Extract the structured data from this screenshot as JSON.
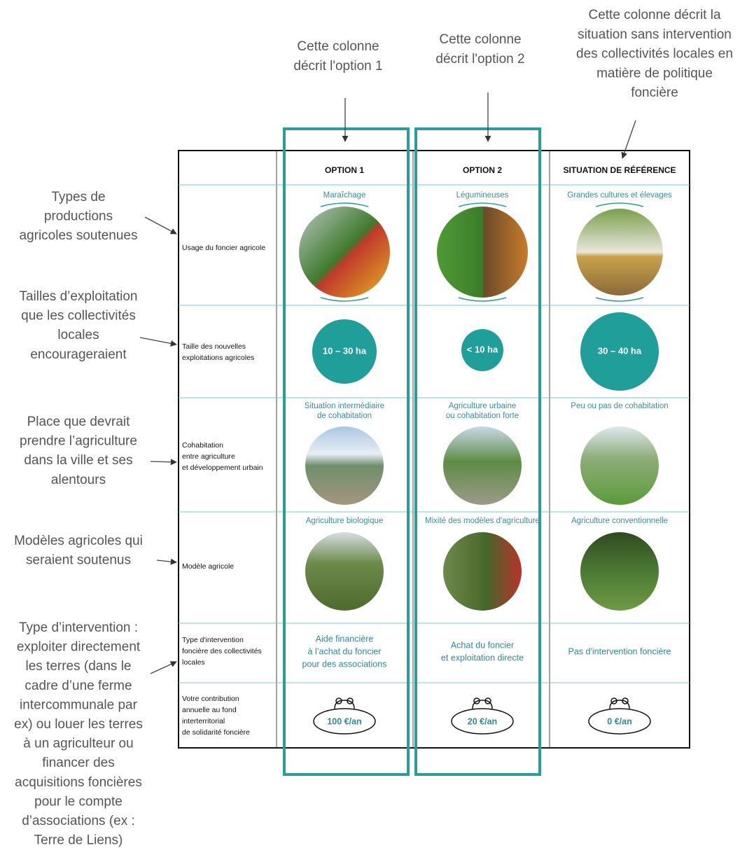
{
  "annotations": {
    "columns": [
      [
        "Cette colonne",
        "décrit l'option 1"
      ],
      [
        "Cette colonne",
        "décrit l'option 2"
      ],
      [
        "Cette colonne décrit la",
        "situation sans intervention",
        "des collectivités locales en",
        "matière de politique",
        "foncière"
      ]
    ],
    "rows": [
      [
        "Types de",
        "productions",
        "agricoles soutenues"
      ],
      [
        "Tailles d’exploitation",
        "que les collectivités",
        "locales",
        "encourageraient"
      ],
      [
        "Place que devrait",
        "prendre l’agriculture",
        "dans la ville et ses",
        "alentours"
      ],
      [
        "Modèles agricoles qui",
        "seraient soutenus"
      ],
      [
        "Type d’intervention :",
        "exploiter directement",
        "les terres (dans le",
        "cadre d’une ferme",
        "intercommunale par",
        "ex) ou louer les terres",
        "à un agriculteur ou",
        "financer des",
        "acquisitions foncières",
        "pour le compte",
        "d’associations (ex :",
        "Terre de Liens)"
      ]
    ]
  },
  "table": {
    "header": [
      "OPTION 1",
      "OPTION 2",
      "SITUATION DE RÉFÉRENCE"
    ],
    "rows": [
      {
        "label": [
          "Usage du foncier agricole"
        ],
        "cells": [
          [
            "Maraîchage"
          ],
          [
            "Légumineuses"
          ],
          [
            "Grandes cultures et élevages"
          ]
        ]
      },
      {
        "label": [
          "Taille des nouvelles",
          "exploitations agricoles"
        ],
        "cells": [
          [
            "10 – 30 ha"
          ],
          [
            "< 10 ha"
          ],
          [
            "30 – 40 ha"
          ]
        ]
      },
      {
        "label": [
          "Cohabitation",
          "entre agriculture",
          "et développement urbain"
        ],
        "cells": [
          [
            "Situation intermédiaire",
            "de cohabitation"
          ],
          [
            "Agriculture urbaine",
            "ou cohabitation forte"
          ],
          [
            "Peu ou pas de cohabitation"
          ]
        ]
      },
      {
        "label": [
          "Modèle agricole"
        ],
        "cells": [
          [
            "Agriculture biologique"
          ],
          [
            "Mixité des modèles d'agriculture"
          ],
          [
            "Agriculture conventionnelle"
          ]
        ]
      },
      {
        "label": [
          "Type d'intervention",
          "foncière des collectivités",
          "locales"
        ],
        "cells": [
          [
            "Aide financière",
            "à l’achat du foncier",
            "pour des associations"
          ],
          [
            "Achat du foncier",
            "et exploitation directe"
          ],
          [
            "Pas d'intervention foncière"
          ]
        ]
      },
      {
        "label": [
          "Votre contribution",
          "annuelle au fond",
          "interterritorial",
          "de solidarité foncière"
        ],
        "cells": [
          [
            "100 €/an"
          ],
          [
            "20 €/an"
          ],
          [
            "0 €/an"
          ]
        ]
      }
    ]
  }
}
